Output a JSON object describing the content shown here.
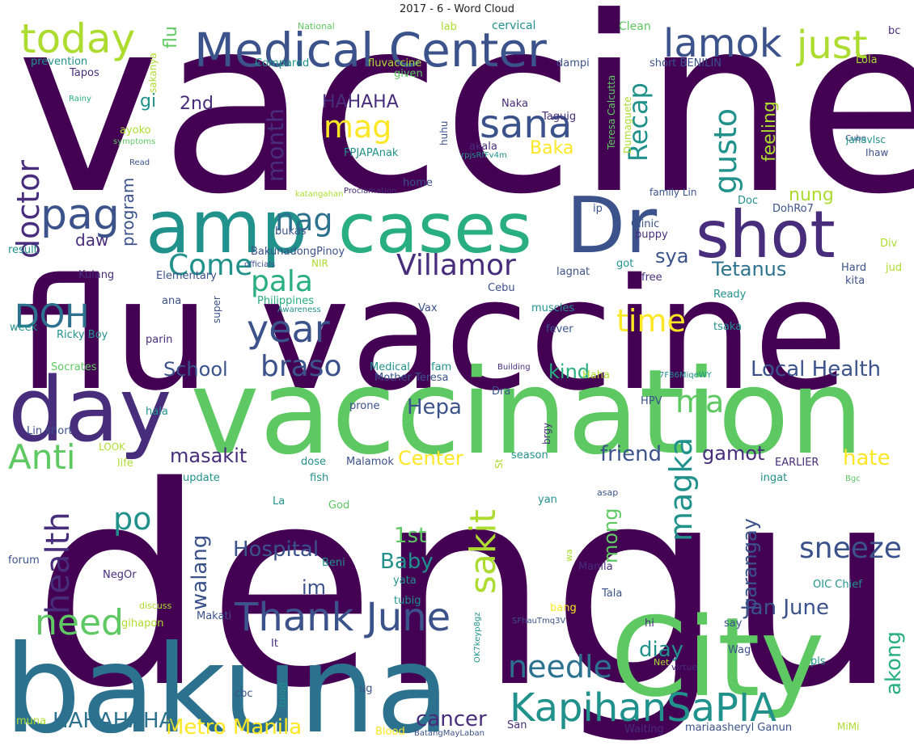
{
  "title": "2017 - 6 - Word Cloud",
  "palette": {
    "deep_purple": "#440154",
    "purple": "#472d7b",
    "indigo": "#3b528b",
    "steel_blue": "#2c728e",
    "teal": "#21918c",
    "green_teal": "#28ae80",
    "green": "#5ec962",
    "lime": "#addc30",
    "yellow": "#fde725"
  },
  "words": [
    {
      "text": "vaccine",
      "color": "deep_purple"
    },
    {
      "text": "dengue",
      "color": "deep_purple"
    },
    {
      "text": "flu vaccine",
      "color": "deep_purple"
    },
    {
      "text": "vaccination",
      "color": "green"
    },
    {
      "text": "bakuna",
      "color": "steel_blue"
    },
    {
      "text": "City",
      "color": "green"
    },
    {
      "text": "day",
      "color": "purple"
    },
    {
      "text": "cases",
      "color": "green_teal"
    },
    {
      "text": "Dr",
      "color": "indigo"
    },
    {
      "text": "amp",
      "color": "teal"
    },
    {
      "text": "shot",
      "color": "purple"
    },
    {
      "text": "Medical Center",
      "color": "indigo"
    },
    {
      "text": "today",
      "color": "lime"
    },
    {
      "text": "lamok",
      "color": "indigo"
    },
    {
      "text": "just",
      "color": "lime"
    },
    {
      "text": "sana",
      "color": "indigo"
    },
    {
      "text": "pag",
      "color": "indigo"
    },
    {
      "text": "year",
      "color": "indigo"
    },
    {
      "text": "DOH",
      "color": "steel_blue"
    },
    {
      "text": "KapihanSaPIA",
      "color": "teal"
    },
    {
      "text": "Thank June",
      "color": "indigo"
    },
    {
      "text": "Anti",
      "color": "green"
    },
    {
      "text": "health",
      "color": "purple"
    },
    {
      "text": "need",
      "color": "green"
    },
    {
      "text": "doctor",
      "color": "purple"
    },
    {
      "text": "Villamor",
      "color": "purple"
    },
    {
      "text": "braso",
      "color": "indigo"
    },
    {
      "text": "Come",
      "color": "teal"
    },
    {
      "text": "pala",
      "color": "green_teal"
    },
    {
      "text": "ma",
      "color": "green"
    },
    {
      "text": "needle",
      "color": "steel_blue"
    },
    {
      "text": "time",
      "color": "yellow"
    },
    {
      "text": "sakit",
      "color": "lime"
    },
    {
      "text": "sneeze",
      "color": "indigo"
    },
    {
      "text": "magka",
      "color": "teal"
    },
    {
      "text": "po",
      "color": "teal"
    },
    {
      "text": "nag",
      "color": "steel_blue"
    },
    {
      "text": "mag",
      "color": "yellow"
    },
    {
      "text": "gusto",
      "color": "teal"
    },
    {
      "text": "Recap",
      "color": "teal"
    },
    {
      "text": "month",
      "color": "purple"
    },
    {
      "text": "Hepa",
      "color": "indigo"
    },
    {
      "text": "Local Health",
      "color": "indigo"
    },
    {
      "text": "Hospital",
      "color": "indigo"
    },
    {
      "text": "Baby",
      "color": "teal"
    },
    {
      "text": "1st",
      "color": "green"
    },
    {
      "text": "Jan June",
      "color": "indigo"
    },
    {
      "text": "walang",
      "color": "indigo"
    },
    {
      "text": "diay",
      "color": "teal"
    },
    {
      "text": "akong",
      "color": "green_teal"
    },
    {
      "text": "cancer",
      "color": "purple"
    },
    {
      "text": "Metro Manila",
      "color": "yellow"
    },
    {
      "text": "HAHAHAHA",
      "color": "steel_blue"
    },
    {
      "text": "masakit",
      "color": "purple"
    },
    {
      "text": "Center",
      "color": "yellow"
    },
    {
      "text": "friend",
      "color": "indigo"
    },
    {
      "text": "gamot",
      "color": "purple"
    },
    {
      "text": "hate",
      "color": "yellow"
    },
    {
      "text": "barangay",
      "color": "indigo"
    },
    {
      "text": "mong",
      "color": "green"
    },
    {
      "text": "School",
      "color": "indigo"
    },
    {
      "text": "kind",
      "color": "green_teal"
    },
    {
      "text": "Tetanus",
      "color": "steel_blue"
    },
    {
      "text": "sya",
      "color": "indigo"
    },
    {
      "text": "im",
      "color": "indigo"
    },
    {
      "text": "HAHAHA",
      "color": "purple"
    },
    {
      "text": "Baka",
      "color": "yellow"
    },
    {
      "text": "feeling",
      "color": "lime"
    },
    {
      "text": "nung",
      "color": "lime"
    },
    {
      "text": "2nd",
      "color": "purple"
    },
    {
      "text": "flu",
      "color": "green"
    },
    {
      "text": "gi",
      "color": "teal"
    },
    {
      "text": "program",
      "color": "indigo"
    },
    {
      "text": "daw",
      "color": "purple"
    },
    {
      "text": "cervical",
      "color": "teal"
    },
    {
      "text": "Clean",
      "color": "green"
    },
    {
      "text": "bc",
      "color": "purple"
    },
    {
      "text": "National",
      "color": "green"
    },
    {
      "text": "lab",
      "color": "lime"
    },
    {
      "text": "sakanya",
      "color": "lime"
    },
    {
      "text": "prevention",
      "color": "teal"
    },
    {
      "text": "Tapos",
      "color": "purple"
    },
    {
      "text": "Compared",
      "color": "teal"
    },
    {
      "text": "fluvaccine",
      "color": "lime"
    },
    {
      "text": "given",
      "color": "green"
    },
    {
      "text": "dampi",
      "color": "indigo"
    },
    {
      "text": "short BENILIN",
      "color": "indigo"
    },
    {
      "text": "Lola",
      "color": "lime"
    },
    {
      "text": "Teresa Calcutta",
      "color": "green"
    },
    {
      "text": "Dumaguete",
      "color": "lime"
    },
    {
      "text": "Rainy",
      "color": "green_teal"
    },
    {
      "text": "Taguig",
      "color": "purple"
    },
    {
      "text": "Naka",
      "color": "purple"
    },
    {
      "text": "huhu",
      "color": "indigo"
    },
    {
      "text": "akala",
      "color": "purple"
    },
    {
      "text": "FPJAPAnak",
      "color": "teal"
    },
    {
      "text": "rpjsRfFv4m",
      "color": "teal"
    },
    {
      "text": "ayoko",
      "color": "lime"
    },
    {
      "text": "symptoms",
      "color": "green"
    },
    {
      "text": "Read",
      "color": "indigo"
    },
    {
      "text": "Cube",
      "color": "indigo"
    },
    {
      "text": "janavlsc",
      "color": "teal"
    },
    {
      "text": "Ihaw",
      "color": "indigo"
    },
    {
      "text": "home",
      "color": "indigo"
    },
    {
      "text": "katangahan",
      "color": "lime"
    },
    {
      "text": "Proclamation",
      "color": "purple"
    },
    {
      "text": "family Lin",
      "color": "indigo"
    },
    {
      "text": "Doc",
      "color": "teal"
    },
    {
      "text": "ip",
      "color": "indigo"
    },
    {
      "text": "DohRo7",
      "color": "indigo"
    },
    {
      "text": "Clinic",
      "color": "indigo"
    },
    {
      "text": "puppy",
      "color": "purple"
    },
    {
      "text": "bukas",
      "color": "indigo"
    },
    {
      "text": "BakunadongPinoy",
      "color": "indigo"
    },
    {
      "text": "result",
      "color": "teal"
    },
    {
      "text": "officials",
      "color": "indigo"
    },
    {
      "text": "NIR",
      "color": "lime"
    },
    {
      "text": "Elementary",
      "color": "indigo"
    },
    {
      "text": "lagnat",
      "color": "indigo"
    },
    {
      "text": "got",
      "color": "teal"
    },
    {
      "text": "Hard",
      "color": "indigo"
    },
    {
      "text": "jud",
      "color": "lime"
    },
    {
      "text": "Div",
      "color": "lime"
    },
    {
      "text": "Kulang",
      "color": "purple"
    },
    {
      "text": "free",
      "color": "purple"
    },
    {
      "text": "kita",
      "color": "indigo"
    },
    {
      "text": "Cebu",
      "color": "indigo"
    },
    {
      "text": "Ready",
      "color": "teal"
    },
    {
      "text": "ana",
      "color": "indigo"
    },
    {
      "text": "Philippines",
      "color": "green_teal"
    },
    {
      "text": "super",
      "color": "indigo"
    },
    {
      "text": "Awareness",
      "color": "teal"
    },
    {
      "text": "Vax",
      "color": "indigo"
    },
    {
      "text": "muscles",
      "color": "teal"
    },
    {
      "text": "week",
      "color": "teal"
    },
    {
      "text": "Ricky Boy",
      "color": "teal"
    },
    {
      "text": "parin",
      "color": "purple"
    },
    {
      "text": "fever",
      "color": "indigo"
    },
    {
      "text": "tsaka",
      "color": "teal"
    },
    {
      "text": "Socrates",
      "color": "green"
    },
    {
      "text": "Medical",
      "color": "teal"
    },
    {
      "text": "fam",
      "color": "teal"
    },
    {
      "text": "Building",
      "color": "purple"
    },
    {
      "text": "Mother Teresa",
      "color": "indigo"
    },
    {
      "text": "Haha",
      "color": "lime"
    },
    {
      "text": "7F86MiqeWY",
      "color": "teal"
    },
    {
      "text": "HPV",
      "color": "indigo"
    },
    {
      "text": "Dra",
      "color": "indigo"
    },
    {
      "text": "prone",
      "color": "indigo"
    },
    {
      "text": "hala",
      "color": "teal"
    },
    {
      "text": "Lin short",
      "color": "indigo"
    },
    {
      "text": "brgy",
      "color": "purple"
    },
    {
      "text": "LOOK",
      "color": "lime"
    },
    {
      "text": "life",
      "color": "lime"
    },
    {
      "text": "dose",
      "color": "teal"
    },
    {
      "text": "Malamok",
      "color": "indigo"
    },
    {
      "text": "St",
      "color": "lime"
    },
    {
      "text": "season",
      "color": "teal"
    },
    {
      "text": "EARLIER",
      "color": "purple"
    },
    {
      "text": "Bgc",
      "color": "green"
    },
    {
      "text": "update",
      "color": "teal"
    },
    {
      "text": "fish",
      "color": "teal"
    },
    {
      "text": "ingat",
      "color": "teal"
    },
    {
      "text": "asap",
      "color": "indigo"
    },
    {
      "text": "La",
      "color": "teal"
    },
    {
      "text": "God",
      "color": "green"
    },
    {
      "text": "yan",
      "color": "teal"
    },
    {
      "text": "forum",
      "color": "indigo"
    },
    {
      "text": "NegOr",
      "color": "purple"
    },
    {
      "text": "Beni",
      "color": "teal"
    },
    {
      "text": "wa",
      "color": "lime"
    },
    {
      "text": "Manila",
      "color": "purple"
    },
    {
      "text": "OIC Chief",
      "color": "teal"
    },
    {
      "text": "yata",
      "color": "teal"
    },
    {
      "text": "Tala",
      "color": "indigo"
    },
    {
      "text": "tubig",
      "color": "teal"
    },
    {
      "text": "discuss",
      "color": "lime"
    },
    {
      "text": "bang",
      "color": "yellow"
    },
    {
      "text": "gihapon",
      "color": "lime"
    },
    {
      "text": "Makati",
      "color": "indigo"
    },
    {
      "text": "SFhauTmq3V",
      "color": "indigo"
    },
    {
      "text": "hi",
      "color": "purple"
    },
    {
      "text": "say",
      "color": "indigo"
    },
    {
      "text": "It",
      "color": "purple"
    },
    {
      "text": "OK7keyp8gz",
      "color": "teal"
    },
    {
      "text": "Wag",
      "color": "indigo"
    },
    {
      "text": "Net",
      "color": "lime"
    },
    {
      "text": "virtue",
      "color": "purple"
    },
    {
      "text": "pls",
      "color": "teal"
    },
    {
      "text": "tulog",
      "color": "teal"
    },
    {
      "text": "cbc",
      "color": "indigo"
    },
    {
      "text": "ug",
      "color": "indigo"
    },
    {
      "text": "muna",
      "color": "lime"
    },
    {
      "text": "Blood",
      "color": "yellow"
    },
    {
      "text": "BatangMayLaban",
      "color": "indigo"
    },
    {
      "text": "San",
      "color": "purple"
    },
    {
      "text": "Waiting",
      "color": "purple"
    },
    {
      "text": "mariaasheryl Ganun",
      "color": "indigo"
    },
    {
      "text": "MiMi",
      "color": "lime"
    }
  ]
}
